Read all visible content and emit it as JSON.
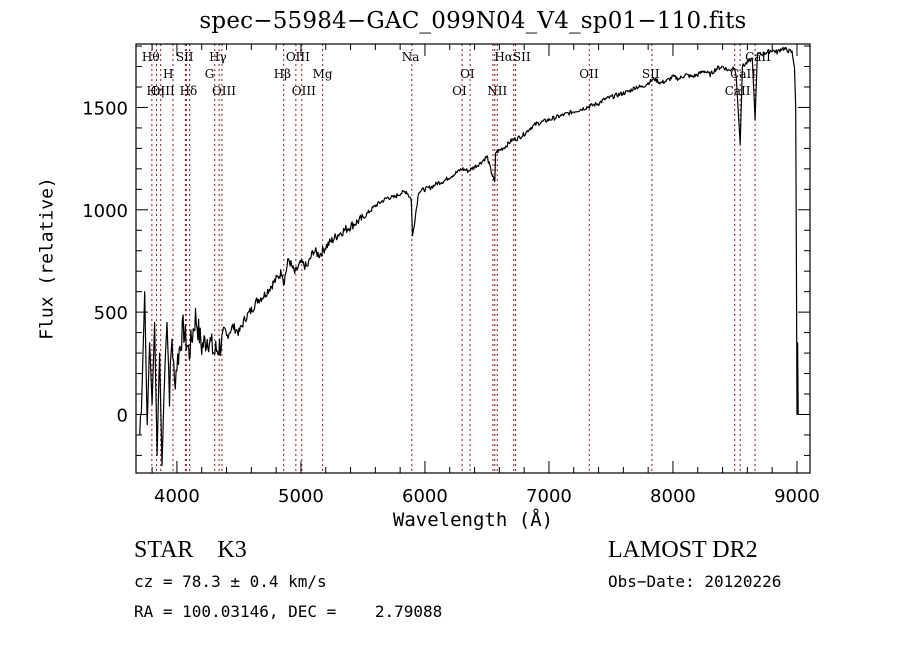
{
  "chart_data": {
    "type": "line",
    "title": "spec−55984−GAC_099N04_V4_sp01−110.fits",
    "xlabel": "Wavelength (Å)",
    "ylabel": "Flux (relative)",
    "xlim": [
      3670,
      9105
    ],
    "ylim": [
      -286,
      1810
    ],
    "x_ticks": [
      4000,
      5000,
      6000,
      7000,
      8000,
      9000
    ],
    "x_tick_labels": [
      "4000",
      "5000",
      "6000",
      "7000",
      "8000",
      "9000"
    ],
    "x_minor_step": 200,
    "y_ticks": [
      0,
      500,
      1000,
      1500
    ],
    "y_tick_labels": [
      "0",
      "500",
      "1000",
      "1500"
    ],
    "y_minor_step": 100,
    "grid": false,
    "line_color": "#000000",
    "marker_line_color": "#8b1a1a",
    "series": [
      {
        "name": "spectrum",
        "x": [
          3700,
          3720,
          3740,
          3760,
          3780,
          3800,
          3820,
          3840,
          3860,
          3880,
          3900,
          3920,
          3940,
          3960,
          3980,
          4000,
          4050,
          4100,
          4150,
          4200,
          4250,
          4300,
          4350,
          4400,
          4450,
          4500,
          4550,
          4600,
          4650,
          4700,
          4750,
          4800,
          4850,
          4860,
          4900,
          4950,
          5000,
          5050,
          5100,
          5150,
          5200,
          5250,
          5300,
          5350,
          5400,
          5450,
          5500,
          5550,
          5600,
          5650,
          5700,
          5750,
          5800,
          5850,
          5890,
          5900,
          5950,
          6000,
          6050,
          6100,
          6150,
          6200,
          6250,
          6300,
          6350,
          6400,
          6450,
          6500,
          6563,
          6570,
          6600,
          6650,
          6700,
          6750,
          6800,
          6850,
          6900,
          6950,
          7000,
          7050,
          7100,
          7150,
          7200,
          7250,
          7300,
          7350,
          7400,
          7450,
          7500,
          7550,
          7600,
          7650,
          7700,
          7750,
          7800,
          7850,
          7900,
          7950,
          8000,
          8050,
          8100,
          8150,
          8200,
          8250,
          8300,
          8350,
          8400,
          8450,
          8498,
          8510,
          8542,
          8560,
          8600,
          8640,
          8662,
          8680,
          8720,
          8760,
          8800,
          8840,
          8880,
          8920,
          8960,
          8980,
          8990,
          9000,
          9005,
          9010
        ],
        "y": [
          -100,
          150,
          600,
          -50,
          350,
          50,
          450,
          -200,
          300,
          -250,
          200,
          450,
          100,
          380,
          150,
          250,
          420,
          300,
          480,
          330,
          380,
          300,
          340,
          380,
          430,
          400,
          470,
          510,
          560,
          580,
          620,
          660,
          700,
          640,
          760,
          690,
          740,
          720,
          800,
          780,
          820,
          850,
          880,
          900,
          920,
          940,
          960,
          990,
          1020,
          1040,
          1060,
          1060,
          1080,
          1090,
          1050,
          870,
          1090,
          1100,
          1110,
          1130,
          1140,
          1160,
          1180,
          1200,
          1190,
          1210,
          1230,
          1260,
          1130,
          1280,
          1290,
          1310,
          1340,
          1350,
          1370,
          1400,
          1420,
          1430,
          1440,
          1450,
          1460,
          1470,
          1480,
          1490,
          1500,
          1510,
          1520,
          1540,
          1550,
          1560,
          1570,
          1580,
          1600,
          1600,
          1620,
          1640,
          1620,
          1630,
          1650,
          1640,
          1660,
          1650,
          1660,
          1680,
          1660,
          1690,
          1700,
          1680,
          1700,
          1650,
          1320,
          1700,
          1720,
          1740,
          1440,
          1760,
          1760,
          1770,
          1780,
          1770,
          1790,
          1780,
          1770,
          1700,
          1500,
          0,
          350,
          0
        ]
      }
    ],
    "line_markers": [
      {
        "label": "Hθ",
        "wavelength": 3798
      },
      {
        "label": "Hη",
        "wavelength": 3835
      },
      {
        "label": "OIII",
        "wavelength": 3869
      },
      {
        "label": "H",
        "wavelength": 3968
      },
      {
        "label": "SII",
        "wavelength": 4068
      },
      {
        "label": "SII",
        "wavelength": 4076
      },
      {
        "label": "Hδ",
        "wavelength": 4102
      },
      {
        "label": "G",
        "wavelength": 4305
      },
      {
        "label": "Hγ",
        "wavelength": 4340
      },
      {
        "label": "OIII",
        "wavelength": 4363
      },
      {
        "label": "Hβ",
        "wavelength": 4861
      },
      {
        "label": "OIII",
        "wavelength": 4959
      },
      {
        "label": "OIII",
        "wavelength": 5007
      },
      {
        "label": "Mg",
        "wavelength": 5175
      },
      {
        "label": "Na",
        "wavelength": 5894
      },
      {
        "label": "OI",
        "wavelength": 6300
      },
      {
        "label": "OI",
        "wavelength": 6364
      },
      {
        "label": "NII",
        "wavelength": 6548
      },
      {
        "label": "Hα",
        "wavelength": 6563
      },
      {
        "label": "NII",
        "wavelength": 6583
      },
      {
        "label": "SII",
        "wavelength": 6716
      },
      {
        "label": "SII",
        "wavelength": 6731
      },
      {
        "label": "OII",
        "wavelength": 7325
      },
      {
        "label": "SII",
        "wavelength": 7830
      },
      {
        "label": "CaII",
        "wavelength": 8498
      },
      {
        "label": "CaII",
        "wavelength": 8542
      },
      {
        "label": "CaII",
        "wavelength": 8662
      }
    ],
    "line_marker_labels": [
      {
        "text": "Hθ",
        "row": 1,
        "wavelength": 3798
      },
      {
        "text": "SII",
        "row": 1,
        "wavelength": 4072
      },
      {
        "text": "Hγ",
        "row": 1,
        "wavelength": 4340
      },
      {
        "text": "OIII",
        "row": 1,
        "wavelength": 4959
      },
      {
        "text": "Na",
        "row": 1,
        "wavelength": 5894
      },
      {
        "text": "HαSII",
        "row": 1,
        "wavelength": 6640
      },
      {
        "text": "CaII",
        "row": 1,
        "wavelength": 8662
      },
      {
        "text": "H",
        "row": 2,
        "wavelength": 3968
      },
      {
        "text": "G",
        "row": 2,
        "wavelength": 4305
      },
      {
        "text": "Hβ",
        "row": 2,
        "wavelength": 4861
      },
      {
        "text": "Mg",
        "row": 2,
        "wavelength": 5175
      },
      {
        "text": "OI",
        "row": 2,
        "wavelength": 6364
      },
      {
        "text": "OII",
        "row": 2,
        "wavelength": 7325
      },
      {
        "text": "SII",
        "row": 2,
        "wavelength": 7830
      },
      {
        "text": "CaII",
        "row": 2,
        "wavelength": 8542
      },
      {
        "text": "OIII",
        "row": 3,
        "wavelength": 3869
      },
      {
        "text": "Hη",
        "row": 3,
        "wavelength": 3835
      },
      {
        "text": "Hδ",
        "row": 3,
        "wavelength": 4102
      },
      {
        "text": "OIII",
        "row": 3,
        "wavelength": 4363
      },
      {
        "text": "OIII",
        "row": 3,
        "wavelength": 5007
      },
      {
        "text": "OI",
        "row": 3,
        "wavelength": 6300
      },
      {
        "text": "NII",
        "row": 3,
        "wavelength": 6583
      },
      {
        "text": "CaII",
        "row": 3,
        "wavelength": 8498
      }
    ]
  },
  "info": {
    "object_type": "STAR    K3",
    "cz": "cz = 78.3 ± 0.4 km/s",
    "radec": "RA = 100.03146, DEC =    2.79088",
    "survey": "LAMOST DR2",
    "obs_date": "Obs−Date: 20120226"
  }
}
